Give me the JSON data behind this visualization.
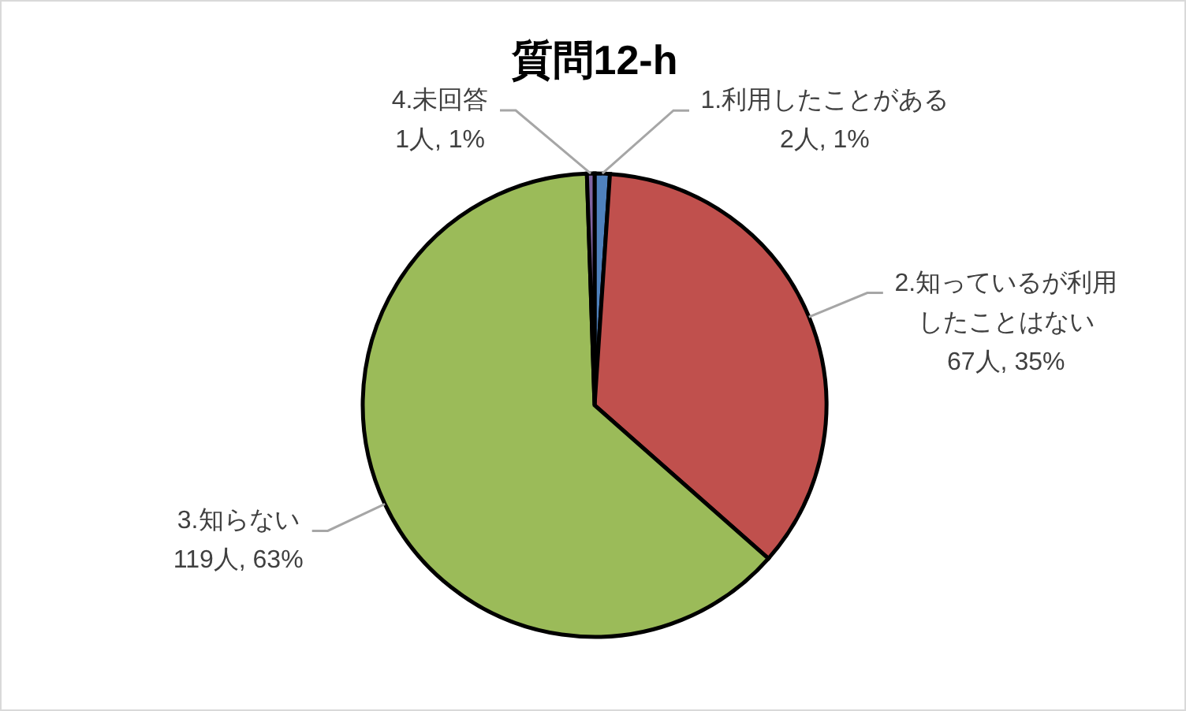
{
  "chart_data": {
    "type": "pie",
    "title": "質問12-h",
    "categories": [
      "1.利用したことがある",
      "2.知っているが利用したことはない",
      "3.知らない",
      "4.未回答"
    ],
    "values": [
      2,
      67,
      119,
      1
    ],
    "colors": [
      "#4f81bd",
      "#c0504d",
      "#9bbb59",
      "#8064a2"
    ],
    "value_labels": [
      "2人, 1%",
      "67人, 35%",
      "119人, 63%",
      "1人, 1%"
    ]
  }
}
